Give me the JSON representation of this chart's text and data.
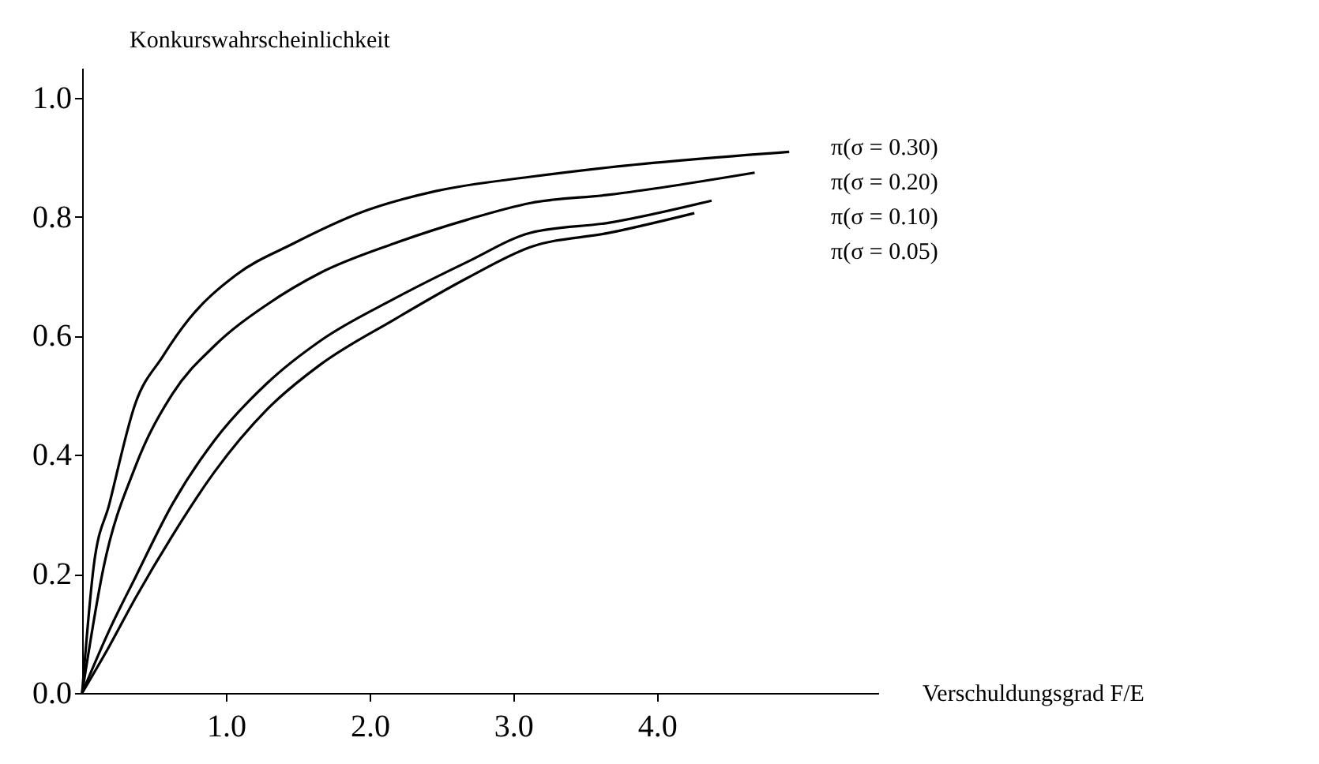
{
  "chart_data": {
    "type": "line",
    "xlabel": "Verschuldungsgrad F/E",
    "ylabel": "Konkurswahrscheinlichkeit",
    "xlim": [
      0,
      5.54
    ],
    "ylim": [
      0,
      1.05
    ],
    "xticks": [
      {
        "value": 1,
        "label": "1.0"
      },
      {
        "value": 2,
        "label": "2.0"
      },
      {
        "value": 3,
        "label": "3.0"
      },
      {
        "value": 4,
        "label": "4.0"
      }
    ],
    "yticks": [
      {
        "value": 0,
        "label": "0.0"
      },
      {
        "value": 0.2,
        "label": "0.2"
      },
      {
        "value": 0.4,
        "label": "0.4"
      },
      {
        "value": 0.6,
        "label": "0.6"
      },
      {
        "value": 0.8,
        "label": "0.8"
      },
      {
        "value": 1,
        "label": "1.0"
      }
    ],
    "grid": false,
    "legend": false,
    "marker": "none",
    "line_style": "solid",
    "series": [
      {
        "name": "π(σ = 0.30)",
        "color": "#000000",
        "x": [
          0,
          0.08,
          0.19,
          0.37,
          0.56,
          0.74,
          1.07,
          1.47,
          1.95,
          2.46,
          3.12,
          3.67,
          4.92
        ],
        "values": [
          0,
          0.212,
          0.318,
          0.486,
          0.565,
          0.627,
          0.702,
          0.755,
          0.808,
          0.843,
          0.867,
          0.883,
          0.909
        ]
      },
      {
        "name": "π(σ = 0.20)",
        "color": "#000000",
        "x": [
          0,
          0.15,
          0.37,
          0.63,
          0.92,
          1.29,
          1.66,
          2.17,
          2.68,
          3.12,
          3.67,
          4.68
        ],
        "values": [
          0,
          0.212,
          0.38,
          0.503,
          0.583,
          0.653,
          0.706,
          0.755,
          0.795,
          0.823,
          0.837,
          0.874
        ]
      },
      {
        "name": "π(σ = 0.10)",
        "color": "#000000",
        "x": [
          0,
          0.19,
          0.37,
          0.63,
          0.92,
          1.29,
          1.66,
          2.17,
          2.68,
          3.12,
          3.67,
          4.38
        ],
        "values": [
          0,
          0.106,
          0.194,
          0.318,
          0.424,
          0.521,
          0.592,
          0.662,
          0.724,
          0.773,
          0.79,
          0.827
        ]
      },
      {
        "name": "π(σ = 0.05)",
        "color": "#000000",
        "x": [
          0,
          0.19,
          0.37,
          0.63,
          0.92,
          1.29,
          1.66,
          2.17,
          2.68,
          3.12,
          3.67,
          4.26
        ],
        "values": [
          0,
          0.079,
          0.159,
          0.265,
          0.371,
          0.477,
          0.552,
          0.627,
          0.697,
          0.749,
          0.773,
          0.806
        ]
      }
    ]
  }
}
